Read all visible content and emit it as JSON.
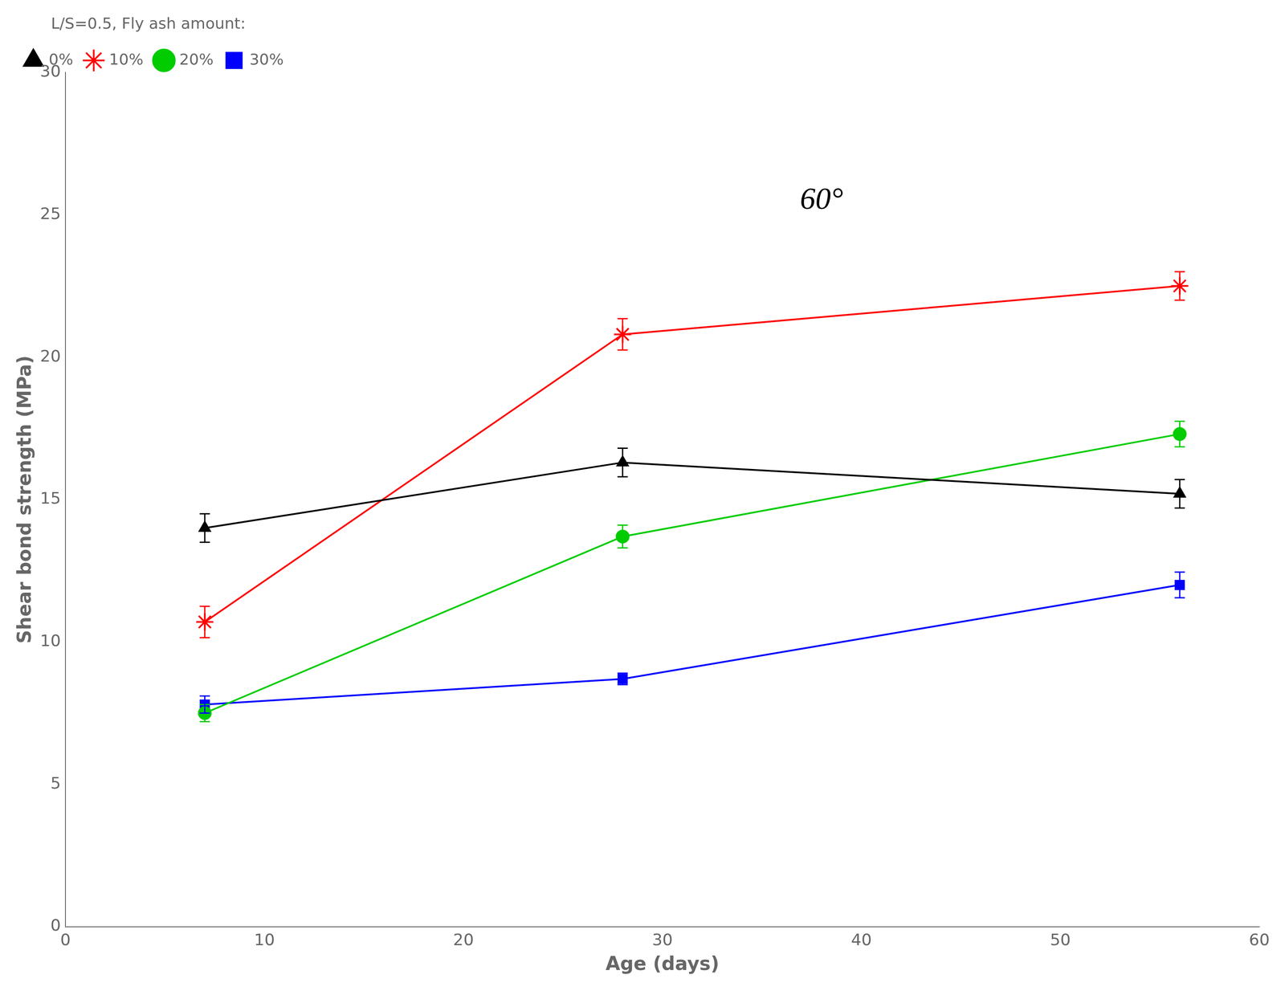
{
  "chart_data": {
    "type": "line",
    "x": [
      7,
      28,
      56
    ],
    "series": [
      {
        "name": "0%",
        "color": "#000000",
        "marker": "triangle",
        "values": [
          14.0,
          16.3,
          15.2
        ],
        "errors": [
          0.5,
          0.5,
          0.5
        ]
      },
      {
        "name": "10%",
        "color": "#ff0000",
        "marker": "star",
        "values": [
          10.7,
          20.8,
          22.5
        ],
        "errors": [
          0.55,
          0.55,
          0.5
        ]
      },
      {
        "name": "20%",
        "color": "#00cc00",
        "marker": "circle",
        "values": [
          7.5,
          13.7,
          17.3
        ],
        "errors": [
          0.3,
          0.4,
          0.45
        ]
      },
      {
        "name": "30%",
        "color": "#0000ff",
        "marker": "square",
        "values": [
          7.8,
          8.7,
          12.0
        ],
        "errors": [
          0.3,
          0.2,
          0.45
        ]
      }
    ],
    "xlabel": "Age (days)",
    "ylabel": "Shear bond strength (MPa)",
    "legend_title": "L/S=0.5, Fly ash amount:",
    "annotation": {
      "text": "60°",
      "x": 38,
      "y": 25.5
    },
    "xlim": [
      0,
      60
    ],
    "ylim": [
      0,
      30
    ],
    "xticks": [
      0,
      10,
      20,
      30,
      40,
      50,
      60
    ],
    "yticks": [
      0,
      5,
      10,
      15,
      20,
      25,
      30
    ],
    "legend": "upper left",
    "grid": false
  }
}
